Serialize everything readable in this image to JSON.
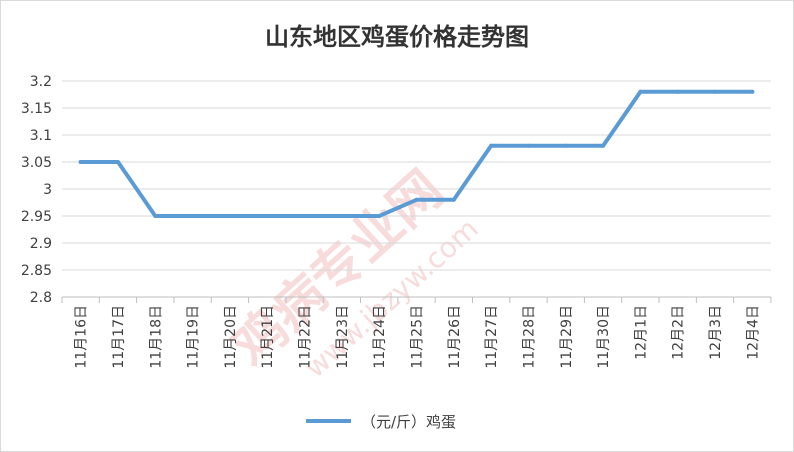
{
  "chart_data": {
    "type": "line",
    "title": "山东地区鸡蛋价格走势图",
    "categories": [
      "11月16日",
      "11月17日",
      "11月18日",
      "11月19日",
      "11月20日",
      "11月21日",
      "11月22日",
      "11月23日",
      "11月24日",
      "11月25日",
      "11月26日",
      "11月27日",
      "11月28日",
      "11月29日",
      "11月30日",
      "12月1日",
      "12月2日",
      "12月3日",
      "12月4日"
    ],
    "series": [
      {
        "name": "（元/斤）鸡蛋",
        "values": [
          3.05,
          3.05,
          2.95,
          2.95,
          2.95,
          2.95,
          2.95,
          2.95,
          2.95,
          2.98,
          2.98,
          3.08,
          3.08,
          3.08,
          3.08,
          3.18,
          3.18,
          3.18,
          3.18
        ]
      }
    ],
    "yticks": [
      "2.8",
      "2.85",
      "2.9",
      "2.95",
      "3",
      "3.05",
      "3.1",
      "3.15",
      "3.2"
    ],
    "ylim": [
      2.8,
      3.2
    ],
    "grid": true,
    "legend": "bottom",
    "line_color": "#5b9bd5"
  },
  "watermark": {
    "text": "鸡病专业网",
    "url": "www.jbzyw.com"
  }
}
